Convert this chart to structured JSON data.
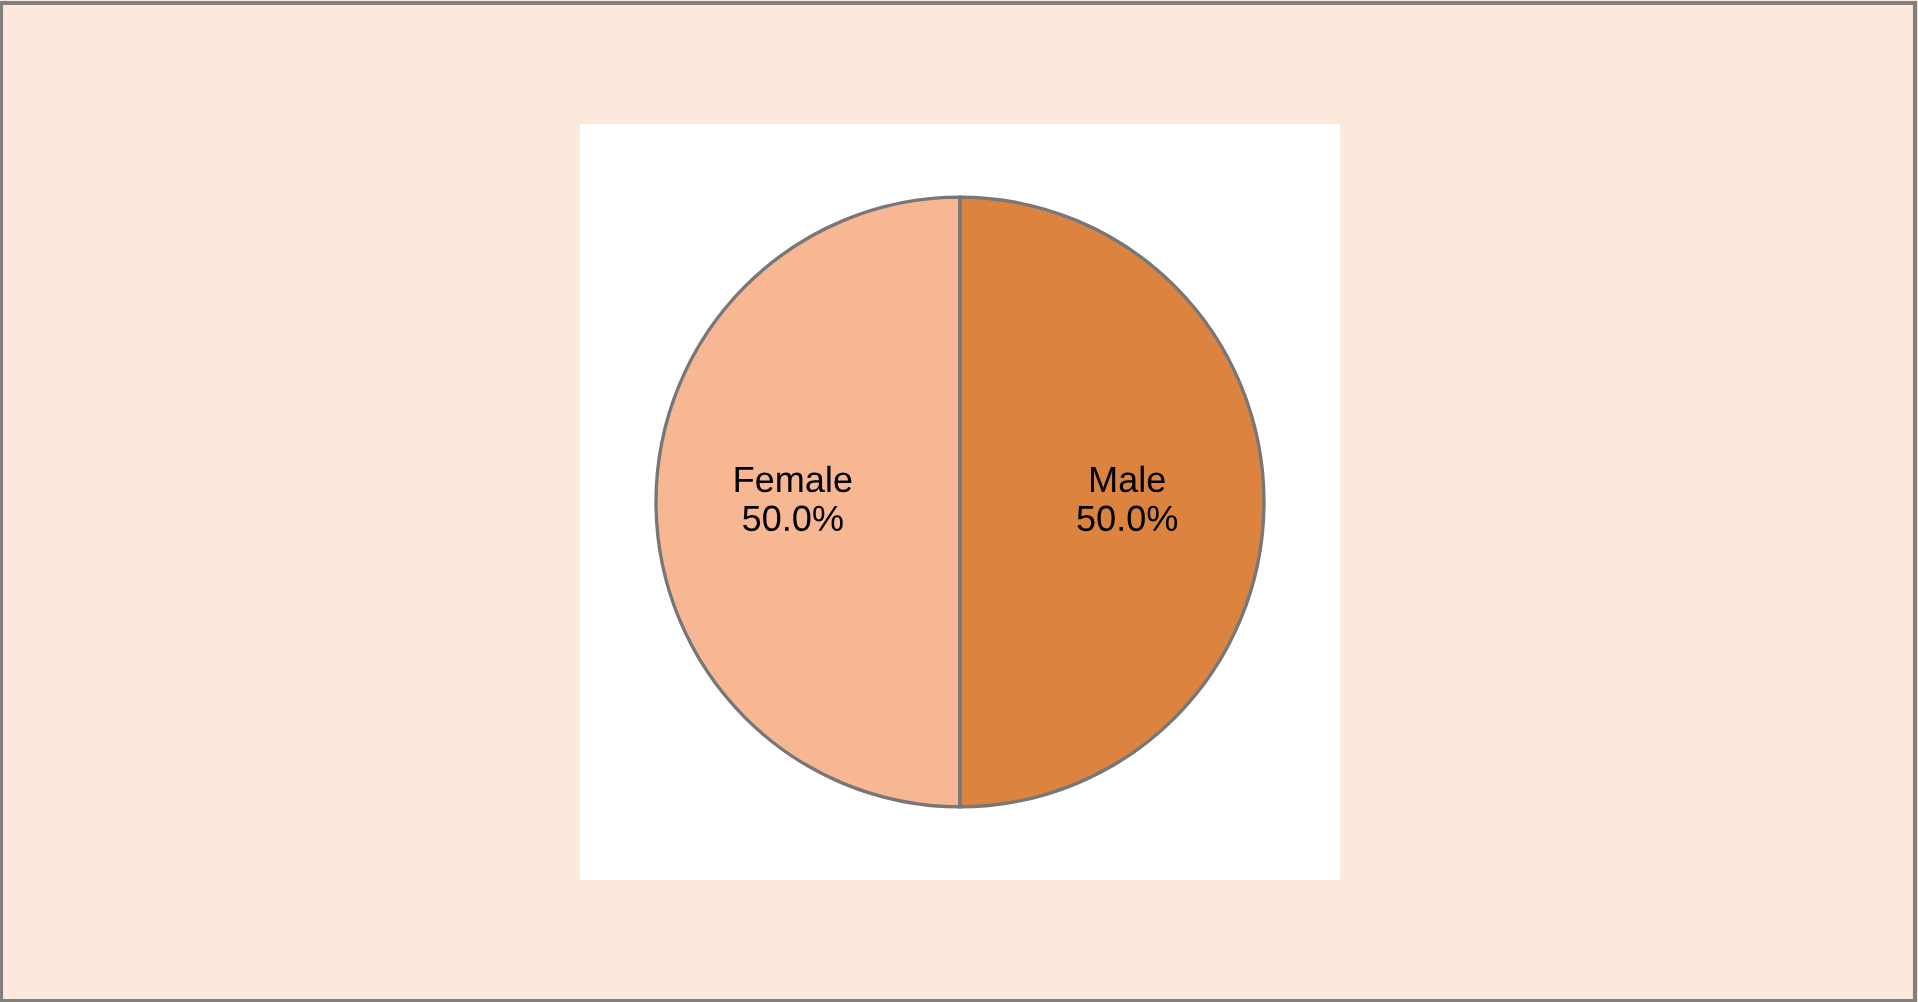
{
  "chart_data": {
    "type": "pie",
    "categories": [
      "Female",
      "Male"
    ],
    "values": [
      50,
      50
    ],
    "value_labels": [
      "50.0%",
      "50.0%"
    ],
    "colors": [
      "#f8b793",
      "#dc843f"
    ],
    "legend": false
  }
}
